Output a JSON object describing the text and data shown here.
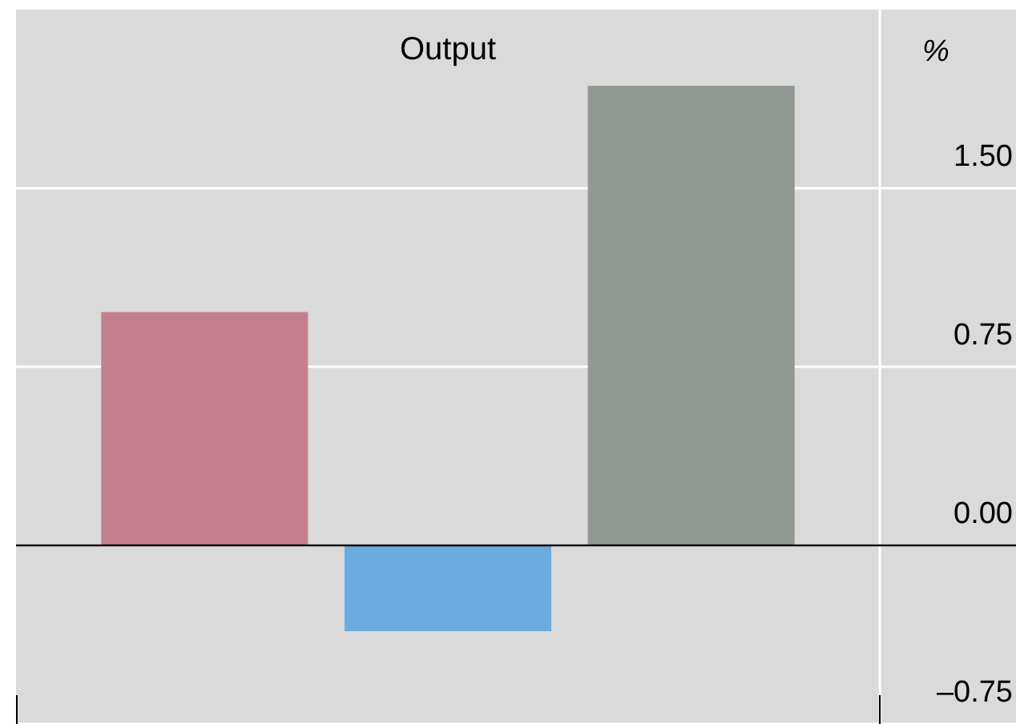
{
  "chart_data": {
    "type": "bar",
    "title": "Output",
    "ylabel": "%",
    "categories": [
      null,
      null,
      null
    ],
    "values": [
      0.98,
      -0.36,
      1.93
    ],
    "colors": [
      "#c47f8f",
      "#6aace0",
      "#919891"
    ],
    "ylim": [
      -0.75,
      2.25
    ],
    "yticks": [
      {
        "value": -0.75,
        "label": "–0.75"
      },
      {
        "value": 0,
        "label": "0.00"
      },
      {
        "value": 0.75,
        "label": "0.75"
      },
      {
        "value": 1.5,
        "label": "1.50"
      }
    ],
    "grid": "y",
    "tick_labels": "y"
  }
}
